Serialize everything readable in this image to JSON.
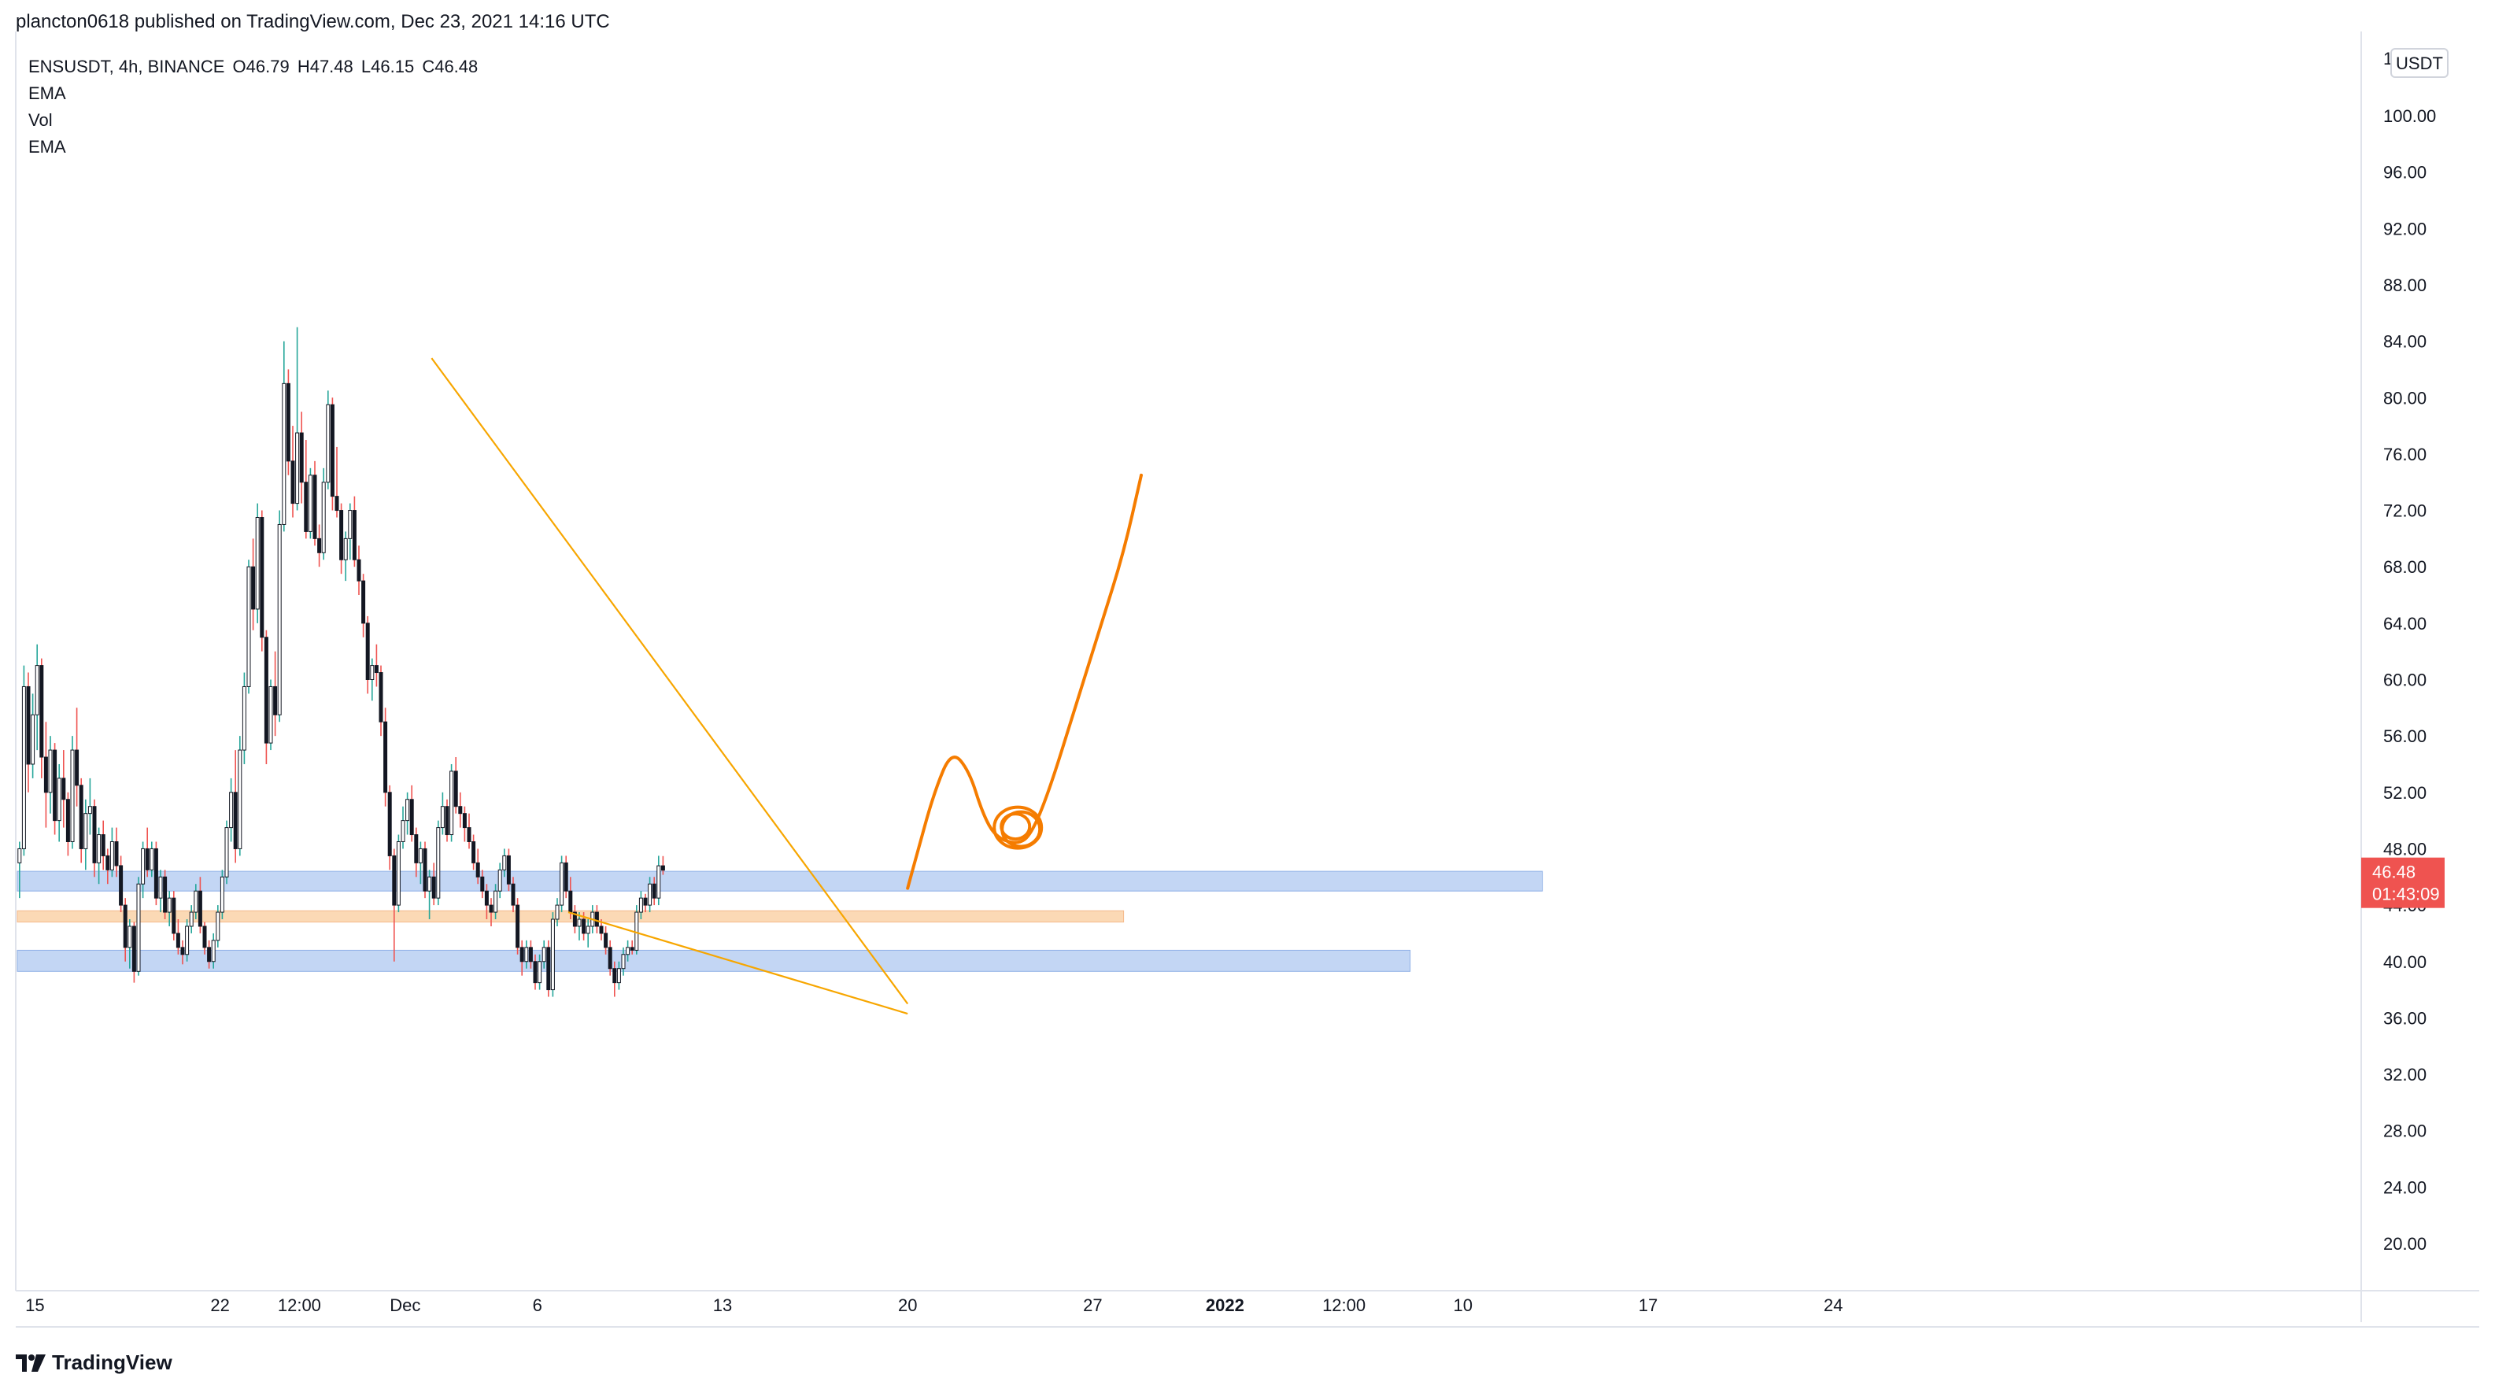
{
  "header": {
    "published_line": "plancton0618 published on TradingView.com, Dec 23, 2021 14:16 UTC"
  },
  "legend": {
    "symbol_line": "ENSUSDT, 4h, BINANCE",
    "open": "O46.79",
    "high": "H47.48",
    "low": "L46.15",
    "close": "C46.48",
    "indicators": [
      "EMA",
      "Vol",
      "EMA"
    ]
  },
  "price_axis": {
    "currency": "USDT",
    "top_clipped_label": "1",
    "current_price": "46.48",
    "countdown": "01:43:09",
    "current_color": "#ef5350"
  },
  "footer": {
    "brand": "TradingView"
  },
  "colors": {
    "up": "#26a69a",
    "down": "#ef5350",
    "body": "#131722",
    "zone_blue": "#b8cff2",
    "zone_orange": "#fad2a8",
    "drawing": "#f57c00",
    "wedge": "#f7a600"
  },
  "chart_data": {
    "type": "candlestick",
    "symbol": "ENSUSDT",
    "timeframe": "4h",
    "exchange": "BINANCE",
    "y_ticks": [
      100,
      96,
      92,
      88,
      84,
      80,
      76,
      72,
      68,
      64,
      60,
      56,
      52,
      48,
      44,
      40,
      36,
      32,
      28,
      24,
      20
    ],
    "y_tick_labels": [
      "100.00",
      "96.00",
      "92.00",
      "88.00",
      "84.00",
      "80.00",
      "76.00",
      "72.00",
      "68.00",
      "64.00",
      "60.00",
      "56.00",
      "52.00",
      "48.00",
      "44.00",
      "40.00",
      "36.00",
      "32.00",
      "28.00",
      "24.00",
      "20.00"
    ],
    "x_ticks": [
      {
        "label": "15",
        "bar": 4
      },
      {
        "label": "22",
        "bar": 46
      },
      {
        "label": "12:00",
        "bar": 64
      },
      {
        "label": "Dec",
        "bar": 88
      },
      {
        "label": "6",
        "bar": 118
      },
      {
        "label": "13",
        "bar": 160
      },
      {
        "label": "20",
        "bar": 202
      },
      {
        "label": "27",
        "bar": 244
      },
      {
        "label": "2022",
        "bar": 274
      },
      {
        "label": "12:00",
        "bar": 301
      },
      {
        "label": "10",
        "bar": 328
      },
      {
        "label": "17",
        "bar": 370
      },
      {
        "label": "24",
        "bar": 412
      }
    ],
    "zones": [
      {
        "color": "zone_blue",
        "from": 45.0,
        "to": 46.4,
        "start_bar": 0,
        "end_bar": 346
      },
      {
        "color": "zone_orange",
        "from": 42.8,
        "to": 43.6,
        "start_bar": 0,
        "end_bar": 251
      },
      {
        "color": "zone_blue",
        "from": 39.3,
        "to": 40.8,
        "start_bar": 0,
        "end_bar": 316
      }
    ],
    "wedge_lines": [
      {
        "from": {
          "bar": 94,
          "price": 82.8
        },
        "to": {
          "bar": 202,
          "price": 37.0
        }
      },
      {
        "from": {
          "bar": 125,
          "price": 43.5
        },
        "to": {
          "bar": 202,
          "price": 36.3
        }
      }
    ],
    "projection_path": [
      {
        "bar": 202,
        "price": 45.2
      },
      {
        "bar": 204,
        "price": 47.5
      },
      {
        "bar": 208,
        "price": 52.0
      },
      {
        "bar": 212,
        "price": 55.0
      },
      {
        "bar": 216,
        "price": 53.5
      },
      {
        "bar": 219,
        "price": 50.5
      },
      {
        "bar": 222,
        "price": 48.8
      },
      {
        "bar": 227,
        "price": 48.3
      },
      {
        "bar": 230,
        "price": 49.0
      },
      {
        "bar": 234,
        "price": 52.0
      },
      {
        "bar": 240,
        "price": 58.0
      },
      {
        "bar": 246,
        "price": 64.0
      },
      {
        "bar": 251,
        "price": 69.0
      },
      {
        "bar": 255,
        "price": 74.5
      }
    ],
    "circle_marker": {
      "bar": 227,
      "price": 49.5
    },
    "candles": [
      [
        47.0,
        48.5,
        44.5,
        48.0
      ],
      [
        48.0,
        61.0,
        47.5,
        59.5
      ],
      [
        59.5,
        60.5,
        52.0,
        54.0
      ],
      [
        54.0,
        59.0,
        53.0,
        57.5
      ],
      [
        57.5,
        62.5,
        55.0,
        61.0
      ],
      [
        61.0,
        61.5,
        53.0,
        54.5
      ],
      [
        54.5,
        57.0,
        49.5,
        52.0
      ],
      [
        52.0,
        56.0,
        50.5,
        55.0
      ],
      [
        55.0,
        55.5,
        49.0,
        50.0
      ],
      [
        50.0,
        54.0,
        48.5,
        53.0
      ],
      [
        53.0,
        55.0,
        49.5,
        51.5
      ],
      [
        51.5,
        52.0,
        47.5,
        48.5
      ],
      [
        48.5,
        56.0,
        48.0,
        55.0
      ],
      [
        55.0,
        58.0,
        51.0,
        52.5
      ],
      [
        52.5,
        53.0,
        47.0,
        48.0
      ],
      [
        48.0,
        51.5,
        46.5,
        50.5
      ],
      [
        50.5,
        53.0,
        49.0,
        51.0
      ],
      [
        51.0,
        51.5,
        46.0,
        47.0
      ],
      [
        47.0,
        49.5,
        45.5,
        49.0
      ],
      [
        49.0,
        50.0,
        46.5,
        47.5
      ],
      [
        47.5,
        48.0,
        45.5,
        46.5
      ],
      [
        46.5,
        49.5,
        46.0,
        48.5
      ],
      [
        48.5,
        49.5,
        46.0,
        46.8
      ],
      [
        46.8,
        47.5,
        43.5,
        44.0
      ],
      [
        44.0,
        44.5,
        40.0,
        41.0
      ],
      [
        41.0,
        43.0,
        39.5,
        42.5
      ],
      [
        42.5,
        42.8,
        38.5,
        39.3
      ],
      [
        39.3,
        46.0,
        39.0,
        45.5
      ],
      [
        45.5,
        48.5,
        44.5,
        48.0
      ],
      [
        48.0,
        49.5,
        46.0,
        46.5
      ],
      [
        46.5,
        48.5,
        46.0,
        48.0
      ],
      [
        48.0,
        48.5,
        44.0,
        44.5
      ],
      [
        44.5,
        46.5,
        43.5,
        46.0
      ],
      [
        46.0,
        46.5,
        43.0,
        43.5
      ],
      [
        43.5,
        45.0,
        42.5,
        44.5
      ],
      [
        44.5,
        45.0,
        41.5,
        42.0
      ],
      [
        42.0,
        43.0,
        40.5,
        41.0
      ],
      [
        41.0,
        41.5,
        39.8,
        40.5
      ],
      [
        40.5,
        43.0,
        40.0,
        42.5
      ],
      [
        42.5,
        44.0,
        42.0,
        43.5
      ],
      [
        43.5,
        45.5,
        43.0,
        45.0
      ],
      [
        45.0,
        46.0,
        42.0,
        42.5
      ],
      [
        42.5,
        42.8,
        40.5,
        41.0
      ],
      [
        41.0,
        41.5,
        39.5,
        40.0
      ],
      [
        40.0,
        42.0,
        39.5,
        41.5
      ],
      [
        41.5,
        44.0,
        41.0,
        43.5
      ],
      [
        43.5,
        46.5,
        43.0,
        46.0
      ],
      [
        46.0,
        50.0,
        45.5,
        49.5
      ],
      [
        49.5,
        53.0,
        48.5,
        52.0
      ],
      [
        52.0,
        55.0,
        47.0,
        48.0
      ],
      [
        48.0,
        56.0,
        47.5,
        55.0
      ],
      [
        55.0,
        60.5,
        54.0,
        59.5
      ],
      [
        59.5,
        68.5,
        59.0,
        68.0
      ],
      [
        68.0,
        70.0,
        63.5,
        65.0
      ],
      [
        65.0,
        72.5,
        64.0,
        71.5
      ],
      [
        71.5,
        72.0,
        62.0,
        63.0
      ],
      [
        63.0,
        63.5,
        54.0,
        55.5
      ],
      [
        55.5,
        60.0,
        55.0,
        59.5
      ],
      [
        59.5,
        62.0,
        56.0,
        57.5
      ],
      [
        57.5,
        72.0,
        57.0,
        71.0
      ],
      [
        71.0,
        84.0,
        70.5,
        81.0
      ],
      [
        81.0,
        82.0,
        74.5,
        75.5
      ],
      [
        75.5,
        78.0,
        71.5,
        72.5
      ],
      [
        72.5,
        85.0,
        72.0,
        77.5
      ],
      [
        77.5,
        79.0,
        72.5,
        74.0
      ],
      [
        74.0,
        77.0,
        70.0,
        70.5
      ],
      [
        70.5,
        75.0,
        70.0,
        74.5
      ],
      [
        74.5,
        75.5,
        69.5,
        70.0
      ],
      [
        70.0,
        71.0,
        68.0,
        69.0
      ],
      [
        69.0,
        75.0,
        68.5,
        74.0
      ],
      [
        74.0,
        80.5,
        73.5,
        79.5
      ],
      [
        79.5,
        80.0,
        72.0,
        73.0
      ],
      [
        73.0,
        76.5,
        71.5,
        72.0
      ],
      [
        72.0,
        72.5,
        67.5,
        68.5
      ],
      [
        68.5,
        70.5,
        67.0,
        70.0
      ],
      [
        70.0,
        72.5,
        68.5,
        72.0
      ],
      [
        72.0,
        73.0,
        68.0,
        68.5
      ],
      [
        68.5,
        69.5,
        66.0,
        67.0
      ],
      [
        67.0,
        67.5,
        63.0,
        64.0
      ],
      [
        64.0,
        64.5,
        59.0,
        60.0
      ],
      [
        60.0,
        61.5,
        58.5,
        61.0
      ],
      [
        61.0,
        62.5,
        59.5,
        60.5
      ],
      [
        60.5,
        61.0,
        56.0,
        57.0
      ],
      [
        57.0,
        58.0,
        51.0,
        52.0
      ],
      [
        52.0,
        52.5,
        46.5,
        47.5
      ],
      [
        47.5,
        48.0,
        40.0,
        44.0
      ],
      [
        44.0,
        49.0,
        43.5,
        48.5
      ],
      [
        48.5,
        51.0,
        48.0,
        50.0
      ],
      [
        50.0,
        52.0,
        49.0,
        51.5
      ],
      [
        51.5,
        52.5,
        48.5,
        49.0
      ],
      [
        49.0,
        49.5,
        46.0,
        47.0
      ],
      [
        47.0,
        48.5,
        45.5,
        48.0
      ],
      [
        48.0,
        48.5,
        44.5,
        45.0
      ],
      [
        45.0,
        46.5,
        43.0,
        46.0
      ],
      [
        46.0,
        47.0,
        44.0,
        44.5
      ],
      [
        44.5,
        50.0,
        44.0,
        49.5
      ],
      [
        49.5,
        52.0,
        49.0,
        51.0
      ],
      [
        51.0,
        51.5,
        48.5,
        49.0
      ],
      [
        49.0,
        54.0,
        48.5,
        53.5
      ],
      [
        53.5,
        54.5,
        50.5,
        51.0
      ],
      [
        51.0,
        52.0,
        49.5,
        50.5
      ],
      [
        50.5,
        51.0,
        48.5,
        49.5
      ],
      [
        49.5,
        50.5,
        48.0,
        48.5
      ],
      [
        48.5,
        49.0,
        46.5,
        47.0
      ],
      [
        47.0,
        48.0,
        45.5,
        46.0
      ],
      [
        46.0,
        46.5,
        44.5,
        45.0
      ],
      [
        45.0,
        45.5,
        43.0,
        44.0
      ],
      [
        44.0,
        44.5,
        42.5,
        43.5
      ],
      [
        43.5,
        45.5,
        43.0,
        45.0
      ],
      [
        45.0,
        47.0,
        44.5,
        46.5
      ],
      [
        46.5,
        48.0,
        46.0,
        47.5
      ],
      [
        47.5,
        48.0,
        45.0,
        45.5
      ],
      [
        45.5,
        46.0,
        43.5,
        44.0
      ],
      [
        44.0,
        44.5,
        40.5,
        41.0
      ],
      [
        41.0,
        41.5,
        39.0,
        40.0
      ],
      [
        40.0,
        41.5,
        39.5,
        41.0
      ],
      [
        41.0,
        41.5,
        39.5,
        40.0
      ],
      [
        40.0,
        40.5,
        38.0,
        38.5
      ],
      [
        38.5,
        40.5,
        38.0,
        40.0
      ],
      [
        40.0,
        41.5,
        39.5,
        41.0
      ],
      [
        41.0,
        41.5,
        37.5,
        38.0
      ],
      [
        38.0,
        43.5,
        37.5,
        43.0
      ],
      [
        43.0,
        44.5,
        42.5,
        44.0
      ],
      [
        44.0,
        47.5,
        43.5,
        47.0
      ],
      [
        47.0,
        47.5,
        44.5,
        45.0
      ],
      [
        45.0,
        46.0,
        43.0,
        43.5
      ],
      [
        43.5,
        44.0,
        42.0,
        42.5
      ],
      [
        42.5,
        43.5,
        41.5,
        43.0
      ],
      [
        43.0,
        43.5,
        41.5,
        42.0
      ],
      [
        42.0,
        43.0,
        41.0,
        42.5
      ],
      [
        42.5,
        44.0,
        42.0,
        43.5
      ],
      [
        43.5,
        44.0,
        42.0,
        42.5
      ],
      [
        42.5,
        43.0,
        41.5,
        42.0
      ],
      [
        42.0,
        42.5,
        40.5,
        41.0
      ],
      [
        41.0,
        41.5,
        39.0,
        39.5
      ],
      [
        39.5,
        40.0,
        37.5,
        38.5
      ],
      [
        38.5,
        40.0,
        38.0,
        39.5
      ],
      [
        39.5,
        41.0,
        39.0,
        40.5
      ],
      [
        40.5,
        41.5,
        40.0,
        41.0
      ],
      [
        41.0,
        41.5,
        40.5,
        40.8
      ],
      [
        40.8,
        44.0,
        40.5,
        43.5
      ],
      [
        43.5,
        45.0,
        43.0,
        44.5
      ],
      [
        44.5,
        44.8,
        43.5,
        44.0
      ],
      [
        44.0,
        46.0,
        43.5,
        45.5
      ],
      [
        45.5,
        46.0,
        44.0,
        44.5
      ],
      [
        44.5,
        47.5,
        44.0,
        46.79
      ],
      [
        46.79,
        47.48,
        46.15,
        46.48
      ]
    ]
  }
}
